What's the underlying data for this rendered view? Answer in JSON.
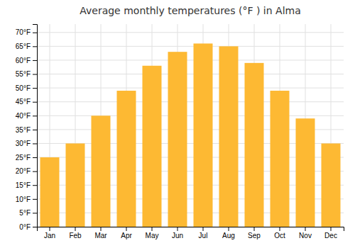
{
  "chart_data": {
    "type": "bar",
    "title": "Average monthly temperatures (°F ) in Alma",
    "categories": [
      "Jan",
      "Feb",
      "Mar",
      "Apr",
      "May",
      "Jun",
      "Jul",
      "Aug",
      "Sep",
      "Oct",
      "Nov",
      "Dec"
    ],
    "values": [
      25,
      30,
      40,
      49,
      58,
      63,
      66,
      65,
      59,
      49,
      39,
      30
    ],
    "color": "#FDB933",
    "ylim": [
      0,
      73
    ],
    "yticks": [
      {
        "value": 0,
        "label": "0°F"
      },
      {
        "value": 5,
        "label": "5°F"
      },
      {
        "value": 10,
        "label": "10°F"
      },
      {
        "value": 15,
        "label": "15°F"
      },
      {
        "value": 20,
        "label": "20°F"
      },
      {
        "value": 25,
        "label": "25°F"
      },
      {
        "value": 30,
        "label": "30°F"
      },
      {
        "value": 35,
        "label": "35°F"
      },
      {
        "value": 40,
        "label": "40°F"
      },
      {
        "value": 45,
        "label": "45°F"
      },
      {
        "value": 50,
        "label": "50°F"
      },
      {
        "value": 55,
        "label": "55°F"
      },
      {
        "value": 60,
        "label": "60°F"
      },
      {
        "value": 65,
        "label": "65°F"
      },
      {
        "value": 70,
        "label": "70°F"
      }
    ],
    "grid": true
  }
}
